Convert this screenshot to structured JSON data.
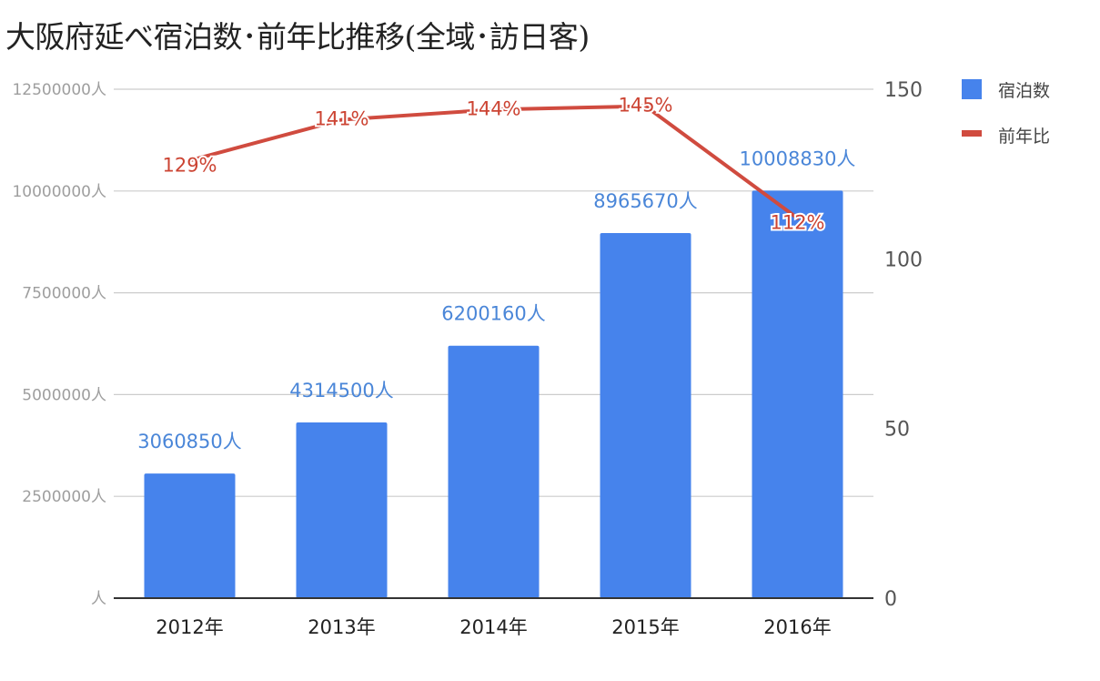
{
  "chart_data": {
    "type": "bar",
    "title": "大阪府延べ宿泊数･前年比推移(全域･訪日客)",
    "categories": [
      "2012年",
      "2013年",
      "2014年",
      "2015年",
      "2016年"
    ],
    "series": [
      {
        "name": "宿泊数",
        "type": "bar",
        "axis": "left",
        "values": [
          3060850,
          4314500,
          6200160,
          8965670,
          10008830
        ],
        "labels": [
          "3060850人",
          "4314500人",
          "6200160人",
          "8965670人",
          "10008830人"
        ]
      },
      {
        "name": "前年比",
        "type": "line",
        "axis": "right",
        "values": [
          129,
          141,
          144,
          145,
          112
        ],
        "labels": [
          "129%",
          "141%",
          "144%",
          "145%",
          "112%"
        ]
      }
    ],
    "left_axis": {
      "ylim": [
        0,
        12500000
      ],
      "ticks": [
        0,
        2500000,
        5000000,
        7500000,
        10000000,
        12500000
      ],
      "tick_labels": [
        "人",
        "2500000人",
        "5000000人",
        "7500000人",
        "10000000人",
        "12500000人"
      ]
    },
    "right_axis": {
      "ylim": [
        0,
        150
      ],
      "ticks": [
        0,
        50,
        100,
        150
      ],
      "tick_labels": [
        "0",
        "50",
        "100",
        "150"
      ]
    },
    "grid": true,
    "legend_position": "top-right",
    "colors": {
      "bar": "#4683ec",
      "line": "#d04b3f"
    }
  }
}
